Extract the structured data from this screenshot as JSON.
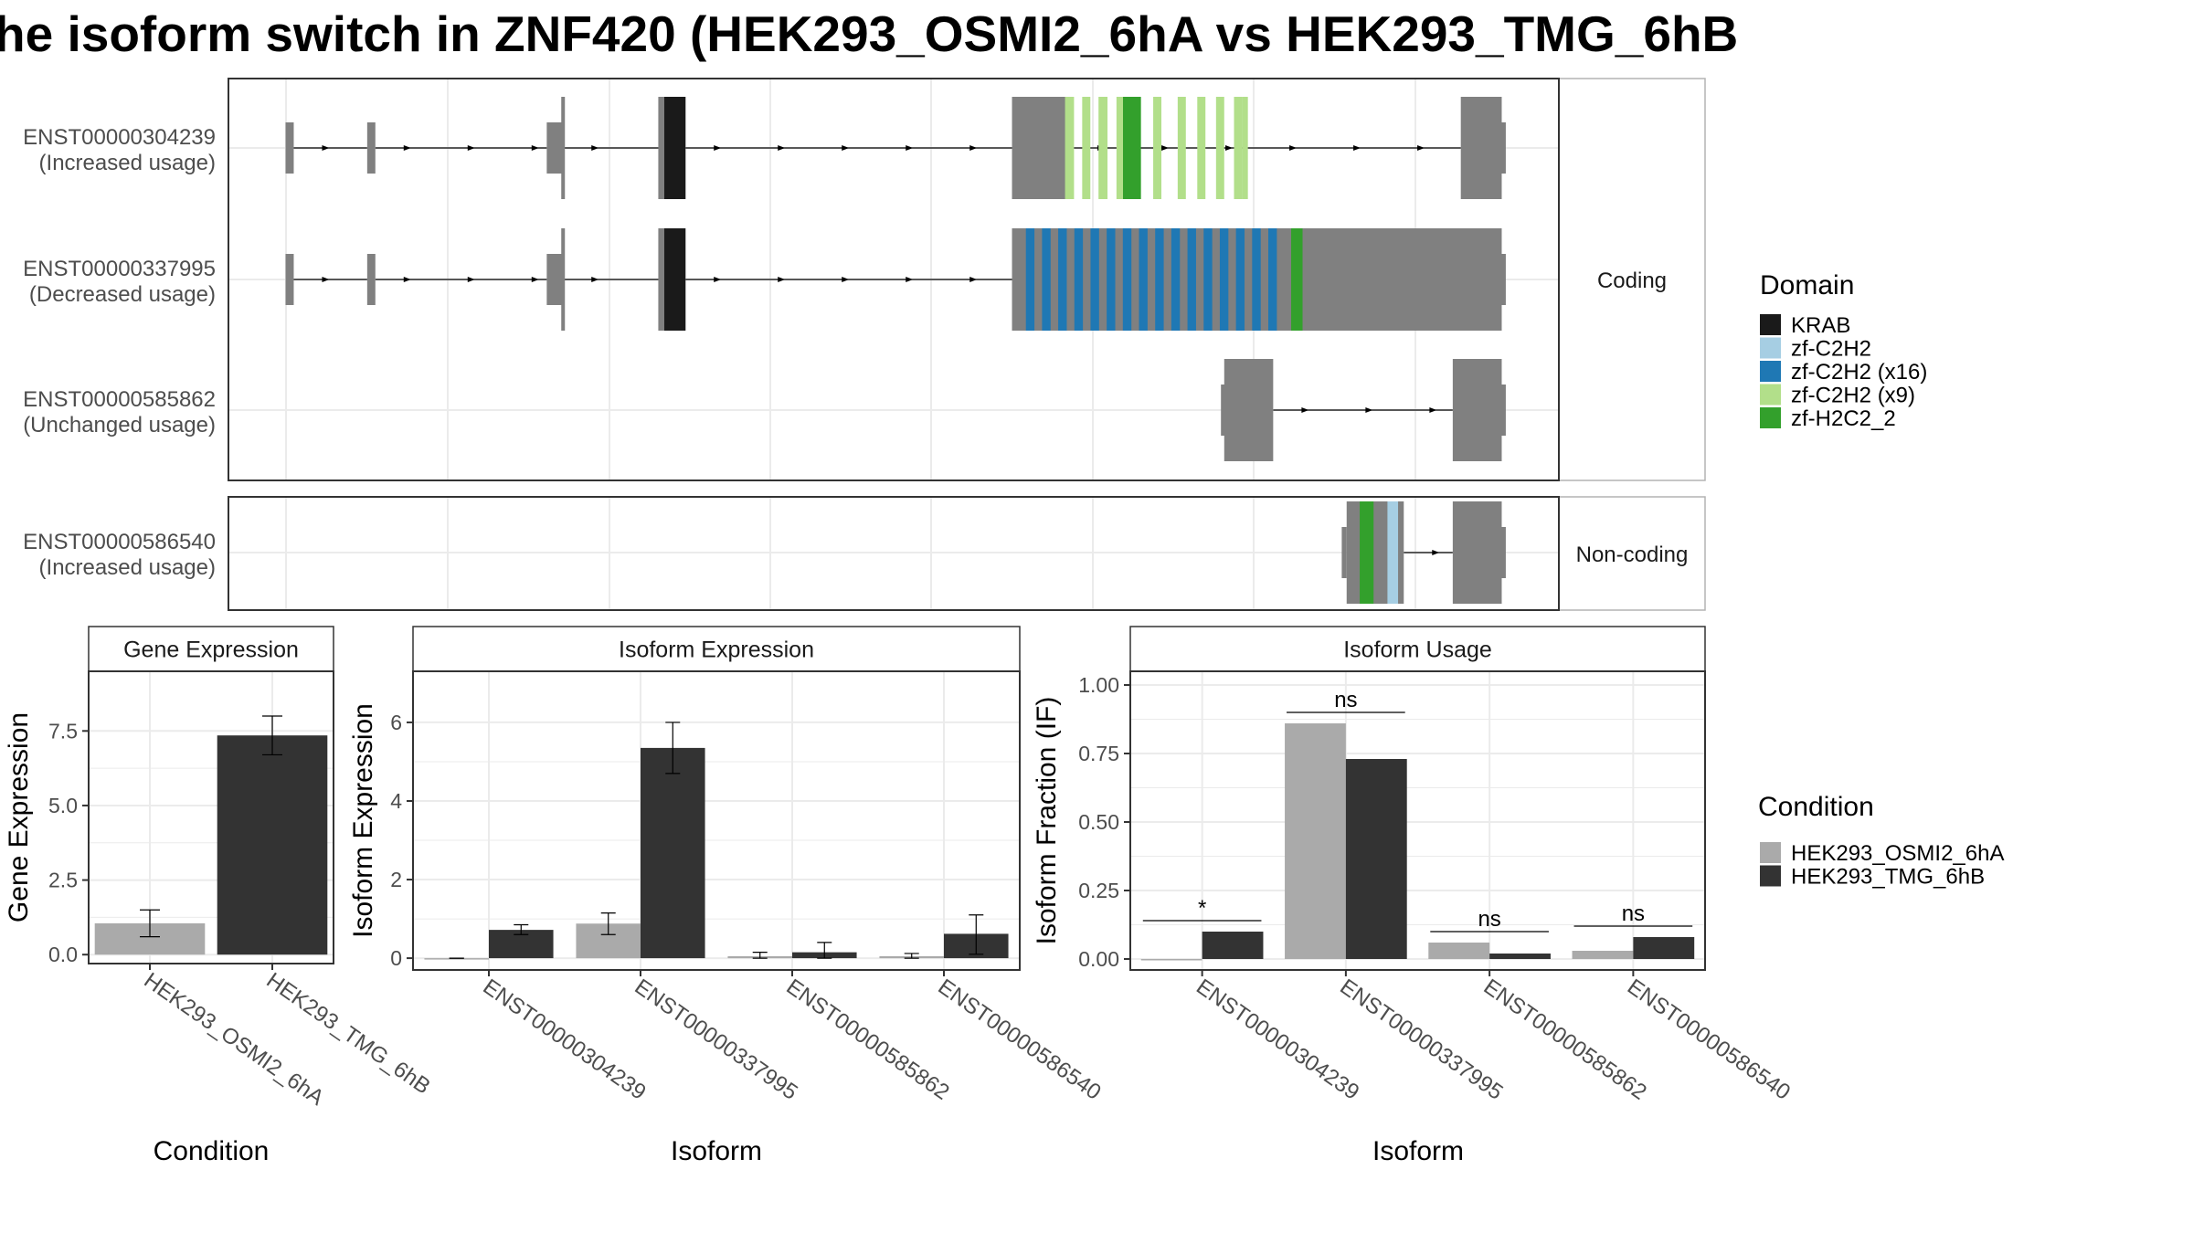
{
  "title": "he isoform switch in ZNF420 (HEK293_OSMI2_6hA vs HEK293_TMG_6hB",
  "colors": {
    "exon_gray": "#808080",
    "KRAB": "#1a1a1a",
    "zf-C2H2": "#a6cee3",
    "zf-C2H2 (x16)": "#1f78b4",
    "zf-C2H2 (x9)": "#b2df8a",
    "zf-H2C2_2": "#33a02c",
    "cond_a": "#aaaaaa",
    "cond_b": "#333333"
  },
  "structure": {
    "facets": [
      "Coding",
      "Non-coding"
    ],
    "tracks": [
      {
        "facet": "Coding",
        "id": "ENST00000304239",
        "status": "(Increased usage)",
        "exons": [
          [
            1,
            2
          ],
          [
            11,
            12
          ],
          [
            33,
            35
          ],
          [
            47,
            50
          ],
          [
            90,
            97
          ],
          [
            145,
            150
          ]
        ],
        "features": [
          [
            47,
            50,
            "KRAB"
          ],
          [
            96,
            97,
            "zf-C2H2 (x9)"
          ],
          [
            98,
            99,
            "zf-C2H2 (x9)"
          ],
          [
            100,
            101,
            "zf-C2H2 (x9)"
          ],
          [
            103,
            104,
            "zf-C2H2 (x9)"
          ],
          [
            104,
            106,
            "zf-H2C2_2"
          ],
          [
            108,
            109,
            "zf-C2H2 (x9)"
          ],
          [
            111,
            112,
            "zf-C2H2 (x9)"
          ],
          [
            113,
            114,
            "zf-C2H2 (x9)"
          ],
          [
            116,
            117,
            "zf-C2H2 (x9)"
          ],
          [
            118,
            119,
            "zf-C2H2 (x9)"
          ]
        ],
        "utr_start": [
          [
            90,
            92
          ]
        ],
        "utr_end": [
          [
            145,
            150
          ]
        ]
      },
      {
        "facet": "Coding",
        "id": "ENST00000337995",
        "status": "(Decreased usage)",
        "exons": [
          [
            1,
            2
          ],
          [
            11,
            12
          ],
          [
            33,
            35
          ],
          [
            47,
            50
          ],
          [
            90,
            150
          ]
        ],
        "features": [
          [
            47,
            50,
            "KRAB"
          ],
          [
            91,
            92,
            "zf-C2H2 (x16)"
          ]
        ],
        "utr_start": [
          [
            90,
            92
          ]
        ],
        "utr_end": [
          [
            127,
            150
          ]
        ]
      },
      {
        "facet": "Coding",
        "id": "ENST00000585862",
        "status": "(Unchanged usage)",
        "exons": [
          [
            116,
            122
          ],
          [
            144,
            150
          ]
        ],
        "features": [],
        "utr_start": [],
        "utr_end": []
      },
      {
        "facet": "Non-coding",
        "id": "ENST00000586540",
        "status": "(Increased usage)",
        "exons": [
          [
            131,
            138
          ],
          [
            144,
            150
          ]
        ],
        "features": [
          [
            133,
            135,
            "zf-H2C2_2"
          ],
          [
            136,
            138,
            "zf-C2H2"
          ]
        ],
        "utr_start": [],
        "utr_end": []
      }
    ]
  },
  "legends": {
    "domain_title": "Domain",
    "domain_items": [
      "KRAB",
      "zf-C2H2",
      "zf-C2H2 (x16)",
      "zf-C2H2 (x9)",
      "zf-H2C2_2"
    ],
    "condition_title": "Condition",
    "condition_items": [
      "HEK293_OSMI2_6hA",
      "HEK293_TMG_6hB"
    ]
  },
  "chart_data": [
    {
      "type": "bar",
      "title": "Gene Expression",
      "xlabel": "Condition",
      "ylabel": "Gene Expression",
      "categories": [
        "HEK293_OSMI2_6hA",
        "HEK293_TMG_6hB"
      ],
      "values": [
        1.05,
        7.35
      ],
      "errors": [
        [
          0.6,
          1.5
        ],
        [
          6.7,
          8.0
        ]
      ],
      "ylim": [
        -0.3,
        9.5
      ],
      "yticks": [
        0.0,
        2.5,
        5.0,
        7.5
      ],
      "ytick_labels": [
        "0.0",
        "2.5",
        "5.0",
        "7.5"
      ],
      "grid": true
    },
    {
      "type": "bar",
      "title": "Isoform Expression",
      "xlabel": "Isoform",
      "ylabel": "Isoform Expression",
      "categories": [
        "ENST00000304239",
        "ENST00000337995",
        "ENST00000585862",
        "ENST00000586540"
      ],
      "series": [
        {
          "name": "HEK293_OSMI2_6hA",
          "values": [
            0.0,
            0.88,
            0.05,
            0.05
          ],
          "errors": [
            [
              0,
              0
            ],
            [
              0.6,
              1.15
            ],
            [
              0.0,
              0.15
            ],
            [
              0.0,
              0.12
            ]
          ]
        },
        {
          "name": "HEK293_TMG_6hB",
          "values": [
            0.72,
            5.35,
            0.15,
            0.62
          ],
          "errors": [
            [
              0.6,
              0.85
            ],
            [
              4.7,
              6.0
            ],
            [
              0.0,
              0.4
            ],
            [
              0.1,
              1.1
            ]
          ]
        }
      ],
      "ylim": [
        -0.3,
        7.3
      ],
      "yticks": [
        0,
        2,
        4,
        6
      ],
      "ytick_labels": [
        "0",
        "2",
        "4",
        "6"
      ],
      "grid": true
    },
    {
      "type": "bar",
      "title": "Isoform Usage",
      "xlabel": "Isoform",
      "ylabel": "Isoform Fraction (IF)",
      "categories": [
        "ENST00000304239",
        "ENST00000337995",
        "ENST00000585862",
        "ENST00000586540"
      ],
      "series": [
        {
          "name": "HEK293_OSMI2_6hA",
          "values": [
            0.0,
            0.86,
            0.06,
            0.03
          ]
        },
        {
          "name": "HEK293_TMG_6hB",
          "values": [
            0.1,
            0.73,
            0.02,
            0.08
          ]
        }
      ],
      "significance": [
        "*",
        "ns",
        "ns",
        "ns"
      ],
      "ylim": [
        -0.04,
        1.05
      ],
      "yticks": [
        0,
        0.25,
        0.5,
        0.75,
        1.0
      ],
      "ytick_labels": [
        "0.00",
        "0.25",
        "0.50",
        "0.75",
        "1.00"
      ],
      "grid": true
    }
  ]
}
